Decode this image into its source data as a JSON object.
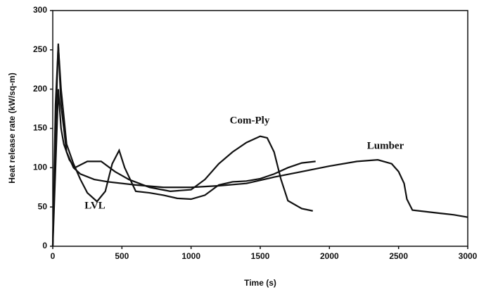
{
  "chart_data": {
    "type": "line",
    "xlabel": "Time (s)",
    "ylabel": "Heat release rate (kW/sq-m)",
    "xlim": [
      0,
      3000
    ],
    "xticks": [
      0,
      500,
      1000,
      1500,
      2000,
      2500,
      3000
    ],
    "ylim": [
      0,
      300
    ],
    "yticks": [
      0,
      50,
      100,
      150,
      200,
      250,
      300
    ],
    "series": [
      {
        "name": "LVL",
        "color": "#111111",
        "x": [
          0,
          20,
          40,
          60,
          100,
          150,
          200,
          250,
          320,
          380,
          430,
          480,
          520,
          600,
          700,
          800,
          900,
          1000,
          1100,
          1200,
          1300,
          1400,
          1500,
          1600,
          1700,
          1800,
          1900
        ],
        "values": [
          0,
          180,
          255,
          200,
          130,
          105,
          85,
          68,
          57,
          70,
          105,
          122,
          100,
          70,
          68,
          65,
          61,
          60,
          65,
          78,
          82,
          83,
          86,
          92,
          100,
          106,
          108
        ]
      },
      {
        "name": "Com-Ply",
        "color": "#111111",
        "x": [
          0,
          20,
          40,
          60,
          80,
          120,
          160,
          250,
          350,
          450,
          550,
          700,
          850,
          1000,
          1100,
          1200,
          1300,
          1400,
          1500,
          1550,
          1600,
          1650,
          1700,
          1800,
          1880
        ],
        "values": [
          0,
          100,
          200,
          150,
          130,
          110,
          100,
          108,
          108,
          95,
          85,
          75,
          70,
          72,
          85,
          105,
          120,
          132,
          140,
          138,
          120,
          85,
          58,
          48,
          45
        ]
      },
      {
        "name": "Lumber",
        "color": "#111111",
        "x": [
          0,
          20,
          40,
          60,
          100,
          150,
          200,
          300,
          400,
          600,
          800,
          1000,
          1200,
          1400,
          1600,
          1800,
          2000,
          2200,
          2350,
          2450,
          2500,
          2540,
          2560,
          2600,
          2700,
          2800,
          2900,
          3000
        ],
        "values": [
          0,
          150,
          258,
          180,
          120,
          100,
          92,
          85,
          82,
          78,
          75,
          75,
          77,
          80,
          88,
          95,
          102,
          108,
          110,
          105,
          95,
          80,
          60,
          46,
          44,
          42,
          40,
          37
        ]
      }
    ]
  }
}
